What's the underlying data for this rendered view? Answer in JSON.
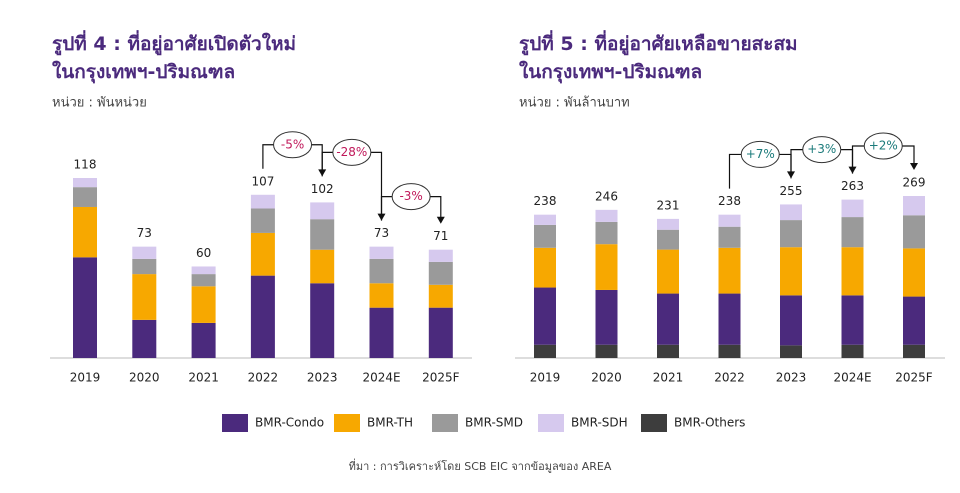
{
  "chart_data": [
    {
      "type": "bar",
      "stacked": true,
      "title": [
        "รูปที่ 4 : ที่อยู่อาศัยเปิดตัวใหม่",
        "ในกรุงเทพฯ-ปริมณฑล"
      ],
      "subtitle": "หน่วย : พันหน่วย",
      "categories": [
        "2019",
        "2020",
        "2021",
        "2022",
        "2023",
        "2024E",
        "2025F"
      ],
      "series": [
        {
          "name": "BMR-Condo",
          "color": "#4b2a7d",
          "values": [
            66,
            25,
            23,
            54,
            49,
            33,
            33
          ]
        },
        {
          "name": "BMR-TH",
          "color": "#f7a800",
          "values": [
            33,
            30,
            24,
            28,
            22,
            16,
            15
          ]
        },
        {
          "name": "BMR-SMD",
          "color": "#9a9a9a",
          "values": [
            13,
            10,
            8,
            16,
            20,
            16,
            15
          ]
        },
        {
          "name": "BMR-SDH",
          "color": "#d6c9ee",
          "values": [
            6,
            8,
            5,
            9,
            11,
            8,
            8
          ]
        }
      ],
      "totals": [
        118,
        73,
        60,
        107,
        102,
        73,
        71
      ],
      "changes": [
        null,
        null,
        null,
        null,
        "-5%",
        "-28%",
        "-3%"
      ],
      "change_color": "#c0185a"
    },
    {
      "type": "bar",
      "stacked": true,
      "title": [
        "รูปที่ 5 : ที่อยู่อาศัยเหลือขายสะสม",
        "ในกรุงเทพฯ-ปริมณฑล"
      ],
      "subtitle": "หน่วย : พันล้านบาท",
      "categories": [
        "2019",
        "2020",
        "2021",
        "2022",
        "2023",
        "2024E",
        "2025F"
      ],
      "series": [
        {
          "name": "BMR-Others",
          "color": "#3d3d3d",
          "values": [
            22,
            22,
            22,
            22,
            21,
            22,
            22
          ]
        },
        {
          "name": "BMR-Condo",
          "color": "#4b2a7d",
          "values": [
            95,
            91,
            85,
            85,
            83,
            82,
            80
          ]
        },
        {
          "name": "BMR-TH",
          "color": "#f7a800",
          "values": [
            66,
            76,
            73,
            76,
            80,
            80,
            80
          ]
        },
        {
          "name": "BMR-SMD",
          "color": "#9a9a9a",
          "values": [
            38,
            37,
            33,
            35,
            45,
            50,
            55
          ]
        },
        {
          "name": "BMR-SDH",
          "color": "#d6c9ee",
          "values": [
            17,
            20,
            18,
            20,
            26,
            29,
            32
          ]
        }
      ],
      "totals": [
        238,
        246,
        231,
        238,
        255,
        263,
        269
      ],
      "changes": [
        null,
        null,
        null,
        null,
        "+7%",
        "+3%",
        "+2%"
      ],
      "change_color": "#1a7a7a"
    }
  ],
  "legend": [
    "BMR-Condo",
    "BMR-TH",
    "BMR-SMD",
    "BMR-SDH",
    "BMR-Others"
  ],
  "source": "ที่มา : การวิเคราะห์โดย SCB EIC จากข้อมูลของ AREA"
}
